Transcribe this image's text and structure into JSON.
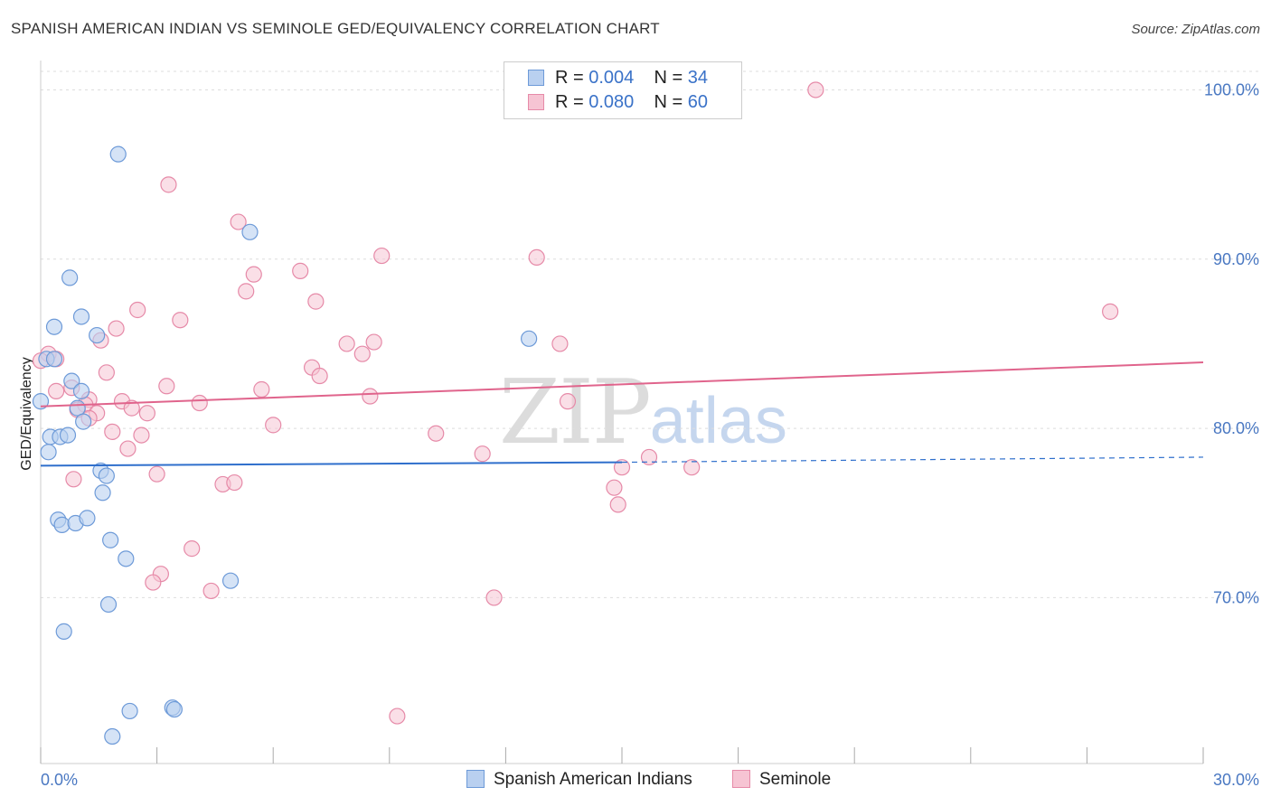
{
  "title": "SPANISH AMERICAN INDIAN VS SEMINOLE GED/EQUIVALENCY CORRELATION CHART",
  "source": "Source: ZipAtlas.com",
  "watermark": {
    "zip": "ZIP",
    "atlas": "atlas"
  },
  "legend": {
    "series1": {
      "r_label": "R =",
      "r_value": "0.004",
      "n_label": "N =",
      "n_value": "34"
    },
    "series2": {
      "r_label": "R =",
      "r_value": "0.080",
      "n_label": "N =",
      "n_value": "60"
    }
  },
  "bottom_legend": {
    "series1": "Spanish American Indians",
    "series2": "Seminole"
  },
  "colors": {
    "blue_fill": "#b9d0f0",
    "blue_stroke": "#6d9ad8",
    "blue_line": "#2f6fcc",
    "pink_fill": "#f6c4d3",
    "pink_stroke": "#e68aa8",
    "pink_line": "#e0648c",
    "grid": "#dddddd",
    "axis_text": "#4a78c2"
  },
  "chart_data": {
    "type": "scatter",
    "title": "SPANISH AMERICAN INDIAN VS SEMINOLE GED/EQUIVALENCY CORRELATION CHART",
    "xlabel": "",
    "ylabel": "GED/Equivalency",
    "xlim": [
      0,
      30
    ],
    "ylim": [
      60.2,
      102
    ],
    "x_tick_labels": [
      {
        "value": 0,
        "label": "0.0%"
      },
      {
        "value": 30,
        "label": "30.0%"
      }
    ],
    "y_tick_labels": [
      {
        "value": 70,
        "label": "70.0%"
      },
      {
        "value": 80,
        "label": "80.0%"
      },
      {
        "value": 90,
        "label": "90.0%"
      },
      {
        "value": 100,
        "label": "100.0%"
      }
    ],
    "grid": true,
    "series": [
      {
        "name": "Spanish American Indians",
        "R": 0.004,
        "N": 34,
        "trend": {
          "x0": 0,
          "y0": 77.8,
          "x1": 15,
          "y1": 78.0,
          "dashed_to_x": 30,
          "dashed_to_y": 78.3
        },
        "points": [
          [
            2.0,
            96.2
          ],
          [
            5.4,
            91.6
          ],
          [
            0.75,
            88.9
          ],
          [
            1.05,
            86.6
          ],
          [
            0.35,
            86.0
          ],
          [
            1.45,
            85.5
          ],
          [
            12.6,
            85.3
          ],
          [
            0.15,
            84.1
          ],
          [
            0.35,
            84.1
          ],
          [
            0.8,
            82.8
          ],
          [
            1.05,
            82.2
          ],
          [
            0.95,
            81.2
          ],
          [
            0.0,
            81.6
          ],
          [
            1.1,
            80.4
          ],
          [
            0.25,
            79.5
          ],
          [
            0.5,
            79.5
          ],
          [
            0.7,
            79.6
          ],
          [
            0.2,
            78.6
          ],
          [
            1.55,
            77.5
          ],
          [
            1.7,
            77.2
          ],
          [
            1.6,
            76.2
          ],
          [
            0.45,
            74.6
          ],
          [
            0.55,
            74.3
          ],
          [
            0.9,
            74.4
          ],
          [
            1.2,
            74.7
          ],
          [
            1.8,
            73.4
          ],
          [
            2.2,
            72.3
          ],
          [
            4.9,
            71.0
          ],
          [
            1.75,
            69.6
          ],
          [
            0.6,
            68.0
          ],
          [
            2.3,
            63.3
          ],
          [
            3.4,
            63.5
          ],
          [
            3.45,
            63.4
          ],
          [
            1.85,
            61.8
          ]
        ]
      },
      {
        "name": "Seminole",
        "R": 0.08,
        "N": 60,
        "trend": {
          "x0": 0,
          "y0": 81.3,
          "x1": 30,
          "y1": 83.9
        },
        "points": [
          [
            20.0,
            100.0
          ],
          [
            3.3,
            94.4
          ],
          [
            5.1,
            92.2
          ],
          [
            8.8,
            90.2
          ],
          [
            12.8,
            90.1
          ],
          [
            6.7,
            89.3
          ],
          [
            5.5,
            89.1
          ],
          [
            5.3,
            88.1
          ],
          [
            7.1,
            87.5
          ],
          [
            2.5,
            87.0
          ],
          [
            27.6,
            86.9
          ],
          [
            3.6,
            86.4
          ],
          [
            1.95,
            85.9
          ],
          [
            1.55,
            85.2
          ],
          [
            7.9,
            85.0
          ],
          [
            8.6,
            85.1
          ],
          [
            13.4,
            85.0
          ],
          [
            8.3,
            84.4
          ],
          [
            0.2,
            84.4
          ],
          [
            0.4,
            84.1
          ],
          [
            7.0,
            83.6
          ],
          [
            1.7,
            83.3
          ],
          [
            7.2,
            83.1
          ],
          [
            0.4,
            82.2
          ],
          [
            0.8,
            82.4
          ],
          [
            3.25,
            82.5
          ],
          [
            5.7,
            82.3
          ],
          [
            8.5,
            81.9
          ],
          [
            1.25,
            81.7
          ],
          [
            2.1,
            81.6
          ],
          [
            1.15,
            81.4
          ],
          [
            4.1,
            81.5
          ],
          [
            13.6,
            81.6
          ],
          [
            0.95,
            81.1
          ],
          [
            2.35,
            81.2
          ],
          [
            1.45,
            80.9
          ],
          [
            2.75,
            80.9
          ],
          [
            1.25,
            80.6
          ],
          [
            6.0,
            80.2
          ],
          [
            1.85,
            79.8
          ],
          [
            2.6,
            79.6
          ],
          [
            10.2,
            79.7
          ],
          [
            2.25,
            78.8
          ],
          [
            11.4,
            78.5
          ],
          [
            15.7,
            78.3
          ],
          [
            3.0,
            77.3
          ],
          [
            15.0,
            77.7
          ],
          [
            16.8,
            77.7
          ],
          [
            0.85,
            77.0
          ],
          [
            4.7,
            76.7
          ],
          [
            5.0,
            76.8
          ],
          [
            14.8,
            76.5
          ],
          [
            14.9,
            75.5
          ],
          [
            3.9,
            72.9
          ],
          [
            3.1,
            71.4
          ],
          [
            2.9,
            70.9
          ],
          [
            4.4,
            70.4
          ],
          [
            11.7,
            70.0
          ],
          [
            9.2,
            63.0
          ],
          [
            0.0,
            84.0
          ]
        ]
      }
    ]
  }
}
